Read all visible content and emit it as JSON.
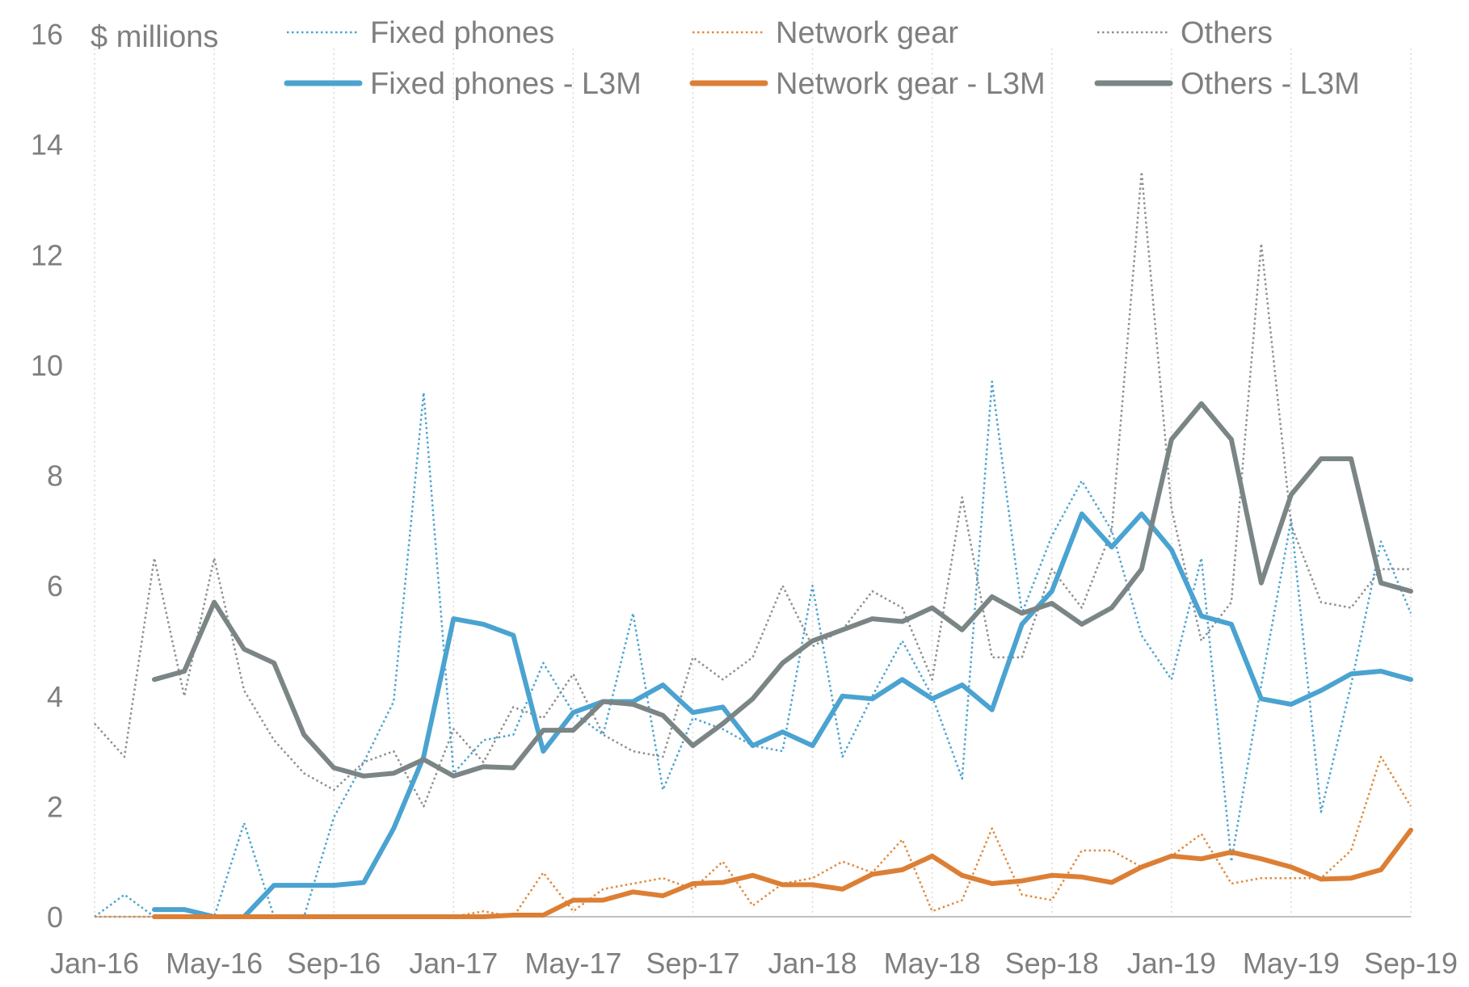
{
  "chart_data": {
    "type": "line",
    "unit_label": "$ millions",
    "ylim": [
      0,
      16
    ],
    "y_ticks": [
      "0",
      "2",
      "4",
      "6",
      "8",
      "10",
      "12",
      "14",
      "16"
    ],
    "x": [
      "Jan-16",
      "Feb-16",
      "Mar-16",
      "Apr-16",
      "May-16",
      "Jun-16",
      "Jul-16",
      "Aug-16",
      "Sep-16",
      "Oct-16",
      "Nov-16",
      "Dec-16",
      "Jan-17",
      "Feb-17",
      "Mar-17",
      "Apr-17",
      "May-17",
      "Jun-17",
      "Jul-17",
      "Aug-17",
      "Sep-17",
      "Oct-17",
      "Nov-17",
      "Dec-17",
      "Jan-18",
      "Feb-18",
      "Mar-18",
      "Apr-18",
      "May-18",
      "Jun-18",
      "Jul-18",
      "Aug-18",
      "Sep-18",
      "Oct-18",
      "Nov-18",
      "Dec-18",
      "Jan-19",
      "Feb-19",
      "Mar-19",
      "Apr-19",
      "May-19",
      "Jun-19",
      "Jul-19",
      "Aug-19",
      "Sep-19"
    ],
    "x_tick_labels": [
      "Jan-16",
      "May-16",
      "Sep-16",
      "Jan-17",
      "May-17",
      "Sep-17",
      "Jan-18",
      "May-18",
      "Sep-18",
      "Jan-19",
      "May-19",
      "Sep-19"
    ],
    "grid": "vertical dotted at labeled months",
    "legend_position": "top",
    "series": [
      {
        "name": "Fixed phones",
        "color": "#4aa3d0",
        "style": "dotted",
        "values": [
          0,
          0.4,
          0,
          0,
          0,
          1.7,
          0,
          0,
          1.8,
          2.8,
          3.9,
          9.5,
          2.6,
          3.2,
          3.3,
          4.6,
          3.7,
          3.3,
          5.5,
          2.3,
          3.6,
          3.4,
          3.1,
          3.0,
          6.0,
          2.9,
          4.0,
          5.0,
          4.0,
          2.5,
          9.7,
          5.5,
          6.9,
          7.9,
          7.0,
          5.1,
          4.3,
          6.5,
          1.0,
          4.2,
          7.2,
          1.9,
          4.2,
          6.8,
          5.5
        ]
      },
      {
        "name": "Network gear",
        "color": "#e08a3c",
        "style": "dotted",
        "values": [
          0,
          0,
          0,
          0,
          0,
          0,
          0,
          0,
          0,
          0,
          0,
          0,
          0,
          0.1,
          0,
          0.8,
          0.1,
          0.5,
          0.6,
          0.7,
          0.5,
          1.0,
          0.2,
          0.6,
          0.7,
          1.0,
          0.8,
          1.4,
          0.1,
          0.3,
          1.6,
          0.4,
          0.3,
          1.2,
          1.2,
          0.9,
          1.1,
          1.5,
          0.6,
          0.7,
          0.7,
          0.7,
          1.2,
          2.9,
          2.0
        ]
      },
      {
        "name": "Others",
        "color": "#8c8f8f",
        "style": "dotted",
        "values": [
          3.5,
          2.9,
          6.5,
          4.0,
          6.5,
          4.1,
          3.2,
          2.6,
          2.3,
          2.8,
          3.0,
          2.0,
          3.4,
          2.8,
          3.8,
          3.6,
          4.4,
          3.3,
          3.0,
          2.9,
          4.7,
          4.3,
          4.7,
          6.0,
          4.9,
          5.2,
          5.9,
          5.6,
          4.3,
          7.6,
          4.7,
          4.7,
          6.3,
          5.6,
          7.0,
          13.5,
          7.4,
          5.0,
          5.7,
          12.2,
          7.1,
          5.7,
          5.6,
          6.3,
          6.3
        ]
      },
      {
        "name": "Fixed phones - L3M",
        "color": "#4aa3d0",
        "style": "solid",
        "values": [
          null,
          null,
          0.13,
          0.13,
          0,
          0,
          0.57,
          0.57,
          0.57,
          0.62,
          1.6,
          2.9,
          5.4,
          5.3,
          5.1,
          3.0,
          3.7,
          3.9,
          3.9,
          4.2,
          3.7,
          3.8,
          3.1,
          3.35,
          3.1,
          4.0,
          3.95,
          4.3,
          3.95,
          4.2,
          3.75,
          5.3,
          5.9,
          7.3,
          6.7,
          7.3,
          6.65,
          5.45,
          5.3,
          3.95,
          3.85,
          4.1,
          4.4,
          4.45,
          4.3
        ]
      },
      {
        "name": "Network gear - L3M",
        "color": "#dc7f35",
        "style": "solid",
        "values": [
          null,
          null,
          0,
          0,
          0,
          0,
          0,
          0,
          0,
          0,
          0,
          0,
          0,
          0,
          0.03,
          0.03,
          0.3,
          0.3,
          0.45,
          0.38,
          0.6,
          0.62,
          0.75,
          0.58,
          0.58,
          0.5,
          0.77,
          0.85,
          1.1,
          0.75,
          0.6,
          0.65,
          0.75,
          0.72,
          0.62,
          0.9,
          1.1,
          1.05,
          1.17,
          1.05,
          0.9,
          0.68,
          0.7,
          0.85,
          1.57
        ]
      },
      {
        "name": "Others - L3M",
        "color": "#7b8585",
        "style": "solid",
        "values": [
          null,
          null,
          4.3,
          4.45,
          5.7,
          4.85,
          4.6,
          3.3,
          2.7,
          2.55,
          2.6,
          2.85,
          2.55,
          2.72,
          2.7,
          3.38,
          3.38,
          3.9,
          3.85,
          3.65,
          3.1,
          3.5,
          3.95,
          4.6,
          5.0,
          5.2,
          5.4,
          5.35,
          5.6,
          5.2,
          5.8,
          5.5,
          5.68,
          5.3,
          5.6,
          6.3,
          8.65,
          9.3,
          8.65,
          6.05,
          7.65,
          8.3,
          8.3,
          6.05,
          5.9
        ]
      }
    ]
  },
  "legend": [
    {
      "label": "Fixed phones",
      "color": "#4aa3d0",
      "style": "dotted"
    },
    {
      "label": "Network gear",
      "color": "#e08a3c",
      "style": "dotted"
    },
    {
      "label": "Others",
      "color": "#8c8f8f",
      "style": "dotted"
    },
    {
      "label": "Fixed phones - L3M",
      "color": "#4aa3d0",
      "style": "solid"
    },
    {
      "label": "Network gear - L3M",
      "color": "#dc7f35",
      "style": "solid"
    },
    {
      "label": "Others - L3M",
      "color": "#7b8585",
      "style": "solid"
    }
  ]
}
